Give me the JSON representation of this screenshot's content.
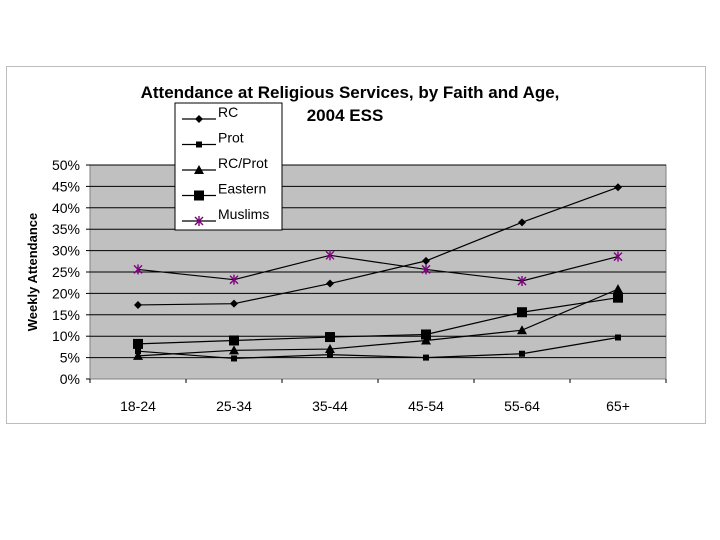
{
  "chart_data": {
    "type": "line",
    "title_line1": "Attendance at Religious Services, by Faith and Age,",
    "title_line2": "2004 ESS",
    "xlabel": "",
    "ylabel": "Weekly Attendance",
    "categories": [
      "18-24",
      "25-34",
      "35-44",
      "45-54",
      "55-64",
      "65+"
    ],
    "ylim": [
      0,
      50
    ],
    "yticks": [
      "0%",
      "5%",
      "10%",
      "15%",
      "20%",
      "25%",
      "30%",
      "35%",
      "40%",
      "45%",
      "50%"
    ],
    "grid": true,
    "legend_position": "top-left-inside",
    "series": [
      {
        "name": "RC",
        "marker": "diamond",
        "color": "#000000",
        "values": [
          17.3,
          17.6,
          22.3,
          27.6,
          36.6,
          44.8
        ]
      },
      {
        "name": "Prot",
        "marker": "small-square",
        "color": "#000000",
        "values": [
          6.5,
          4.8,
          5.7,
          5.0,
          5.9,
          9.7
        ]
      },
      {
        "name": "RC/Prot",
        "marker": "triangle",
        "color": "#000000",
        "values": [
          5.4,
          6.7,
          7.0,
          9.0,
          11.4,
          21.0
        ]
      },
      {
        "name": "Eastern",
        "marker": "large-square",
        "color": "#000000",
        "values": [
          8.2,
          9.0,
          9.8,
          10.4,
          15.6,
          19.0
        ]
      },
      {
        "name": "Muslims",
        "marker": "star",
        "color": "#800080",
        "line_color": "#000000",
        "values": [
          25.6,
          23.2,
          28.9,
          25.6,
          22.9,
          28.6
        ]
      }
    ]
  }
}
